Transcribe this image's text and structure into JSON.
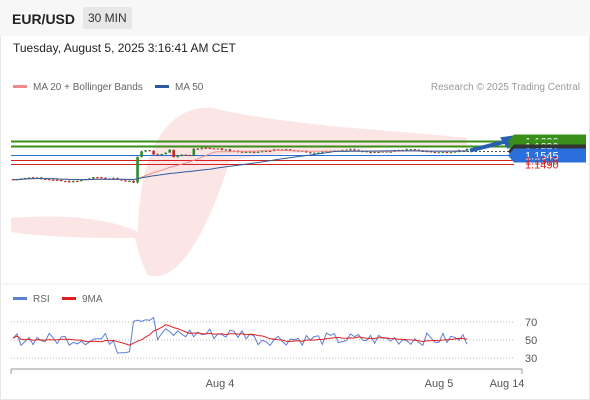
{
  "header": {
    "pair": "EUR/USD",
    "timeframe": "30 MIN"
  },
  "timestamp": "Tuesday, August 5, 2025 3:16:41 AM CET",
  "legend": {
    "ma20": {
      "label": "MA 20 + Bollinger Bands",
      "color": "#f08a8a"
    },
    "ma50": {
      "label": "MA 50",
      "color": "#2d5a9e"
    }
  },
  "credit": "Research © 2025 Trading Central",
  "rsi_legend": {
    "rsi": {
      "label": "RSI",
      "color": "#5b7fd6"
    },
    "ma9": {
      "label": "9MA",
      "color": "#e02020"
    }
  },
  "chart_data": {
    "type": "candlestick",
    "price_levels": [
      {
        "value": 1.163,
        "label": "1.1630",
        "kind": "resistance",
        "color": "#3a8f1a"
      },
      {
        "value": 1.16,
        "label": "1.1600",
        "kind": "resistance",
        "color": "#3a8f1a"
      },
      {
        "value": 1.1571,
        "label": "1.1571",
        "kind": "last",
        "color": "#333333"
      },
      {
        "value": 1.1545,
        "label": "1.1545",
        "kind": "pivot",
        "color": "#2a6fdb"
      },
      {
        "value": 1.1515,
        "label": "1.1515",
        "kind": "support",
        "color": "#d62020"
      },
      {
        "value": 1.149,
        "label": "1.1490",
        "kind": "support",
        "color": "#d62020"
      }
    ],
    "price_range": [
      1.132,
      1.165
    ],
    "x_ticks": [
      "Aug 4",
      "Aug 5",
      "Aug 14"
    ],
    "rsi_ticks": [
      "70",
      "50",
      "30"
    ],
    "rsi_range": [
      10,
      90
    ],
    "forecast_arrow": {
      "from": 1.1571,
      "to": 1.1625,
      "color": "#2a5fb0"
    },
    "candles_summary": "EUR/USD 30-min: consolidation near 1.1400, sharp rally to ~1.1590 then sideways 1.1550–1.1590"
  }
}
